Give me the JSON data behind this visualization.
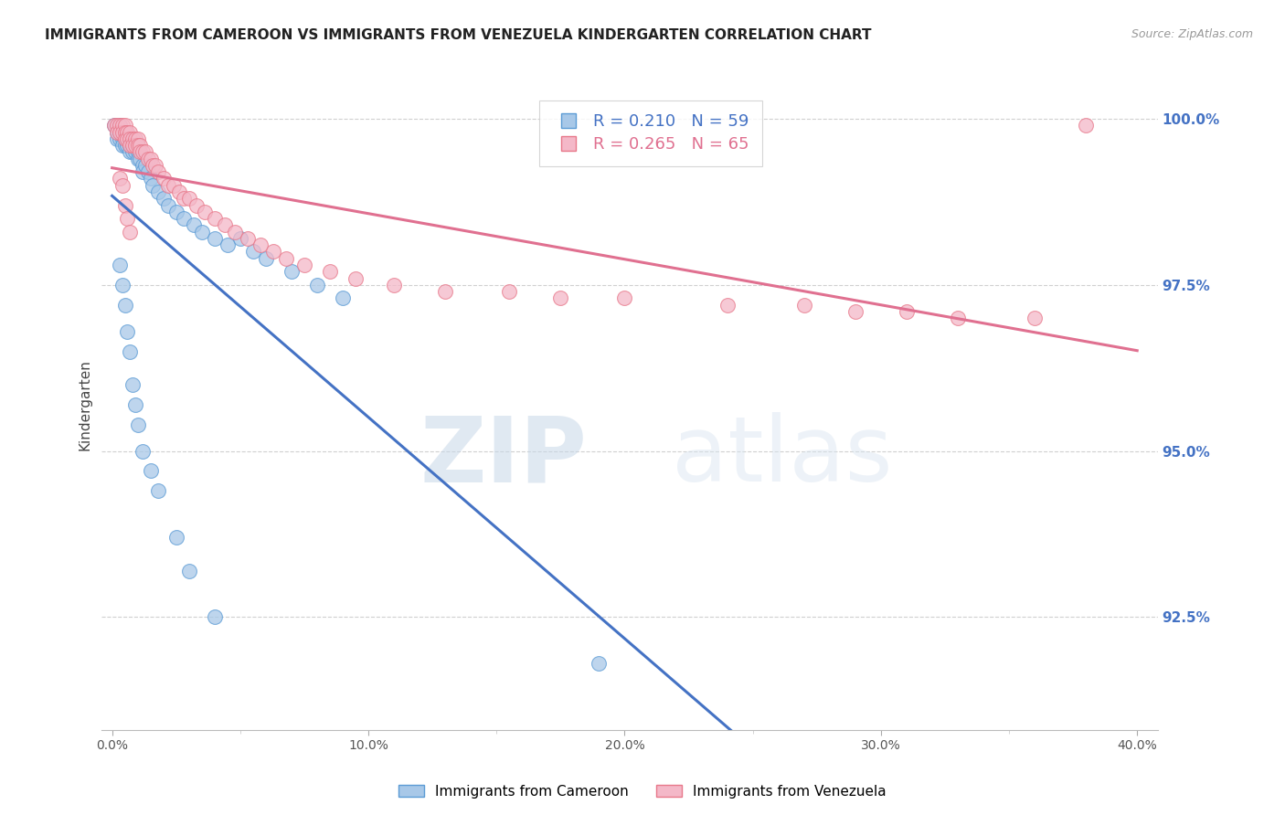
{
  "title": "IMMIGRANTS FROM CAMEROON VS IMMIGRANTS FROM VENEZUELA KINDERGARTEN CORRELATION CHART",
  "source": "Source: ZipAtlas.com",
  "ylabel": "Kindergarten",
  "xlim": [
    0.0,
    0.4
  ],
  "ylim": [
    0.908,
    1.006
  ],
  "xtick_labels": [
    "0.0%",
    "",
    "10.0%",
    "",
    "20.0%",
    "",
    "30.0%",
    "",
    "40.0%"
  ],
  "xtick_values": [
    0.0,
    0.05,
    0.1,
    0.15,
    0.2,
    0.25,
    0.3,
    0.35,
    0.4
  ],
  "ytick_labels": [
    "92.5%",
    "95.0%",
    "97.5%",
    "100.0%"
  ],
  "ytick_values": [
    0.925,
    0.95,
    0.975,
    1.0
  ],
  "ytick_color": "#4472c4",
  "watermark_zip": "ZIP",
  "watermark_atlas": "atlas",
  "legend_text1": "R = 0.210   N = 59",
  "legend_text2": "R = 0.265   N = 65",
  "color_cameroon_face": "#a8c8e8",
  "color_cameroon_edge": "#5b9bd5",
  "color_venezuela_face": "#f4b8c8",
  "color_venezuela_edge": "#e8788a",
  "line_color_cameroon": "#4472c4",
  "line_color_venezuela": "#e07090",
  "title_fontsize": 11,
  "source_fontsize": 9
}
